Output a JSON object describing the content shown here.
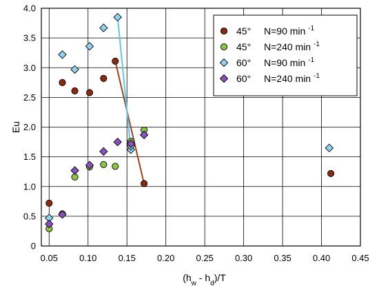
{
  "chart_data": {
    "type": "scatter",
    "title": "",
    "xlabel": "(h_w - h_d)/T",
    "ylabel": "Eu",
    "xlim": [
      0.04,
      0.45
    ],
    "ylim": [
      0,
      4.0
    ],
    "x_ticks": [
      "0.05",
      "0.10",
      "0.15",
      "0.20",
      "0.25",
      "0.30",
      "0.35",
      "0.40",
      "0.45"
    ],
    "y_ticks": [
      "0",
      "0.5",
      "1.0",
      "1.5",
      "2.0",
      "2.5",
      "3.0",
      "3.5",
      "4.0"
    ],
    "grid": true,
    "legend_position": "top-right",
    "series": [
      {
        "name": "45° N=90 min -1",
        "label_prefix": "45°",
        "label_main": "N=90 min",
        "label_sup": "-1",
        "marker": "circle",
        "color": "#8b2a10",
        "points": [
          [
            0.05,
            0.72
          ],
          [
            0.067,
            2.75
          ],
          [
            0.083,
            2.61
          ],
          [
            0.102,
            2.58
          ],
          [
            0.12,
            2.82
          ],
          [
            0.135,
            3.11
          ],
          [
            0.172,
            1.05
          ],
          [
            0.412,
            1.22
          ]
        ]
      },
      {
        "name": "45° N=240 min -1",
        "label_prefix": "45°",
        "label_main": "N=240 min",
        "label_sup": "-1",
        "marker": "circle",
        "color": "#8cc640",
        "points": [
          [
            0.05,
            0.29
          ],
          [
            0.067,
            0.54
          ],
          [
            0.083,
            1.16
          ],
          [
            0.102,
            1.33
          ],
          [
            0.12,
            1.37
          ],
          [
            0.135,
            1.34
          ],
          [
            0.155,
            1.76
          ],
          [
            0.172,
            1.95
          ]
        ]
      },
      {
        "name": "60° N=90 min -1",
        "label_prefix": "60°",
        "label_main": "N=90 min",
        "label_sup": "-1",
        "marker": "diamond",
        "color": "#8fd4ee",
        "points": [
          [
            0.05,
            0.47
          ],
          [
            0.067,
            3.22
          ],
          [
            0.083,
            2.97
          ],
          [
            0.102,
            3.36
          ],
          [
            0.12,
            3.67
          ],
          [
            0.138,
            3.85
          ],
          [
            0.155,
            1.62
          ],
          [
            0.155,
            1.68
          ],
          [
            0.41,
            1.65
          ]
        ]
      },
      {
        "name": "60° N=240 min -1",
        "label_prefix": "60°",
        "label_main": "N=240 min",
        "label_sup": "-1",
        "marker": "diamond",
        "color": "#8a4fc0",
        "points": [
          [
            0.05,
            0.37
          ],
          [
            0.067,
            0.53
          ],
          [
            0.083,
            1.27
          ],
          [
            0.102,
            1.36
          ],
          [
            0.12,
            1.59
          ],
          [
            0.138,
            1.75
          ],
          [
            0.155,
            1.72
          ],
          [
            0.172,
            1.87
          ]
        ]
      }
    ],
    "trend_lines": [
      {
        "color": "#a0421e",
        "points": [
          [
            0.135,
            3.11
          ],
          [
            0.172,
            1.05
          ]
        ]
      },
      {
        "color": "#5ec8e8",
        "points": [
          [
            0.138,
            3.85
          ],
          [
            0.155,
            1.62
          ]
        ]
      }
    ]
  }
}
